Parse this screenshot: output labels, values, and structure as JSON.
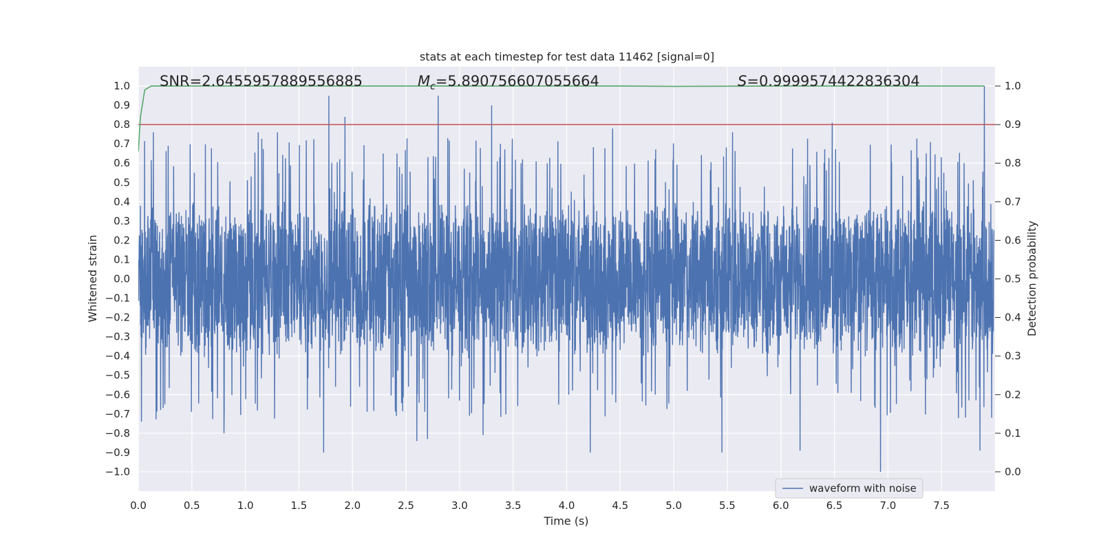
{
  "chart_data": {
    "type": "line",
    "title": "stats at each timestep for test data 11462 [signal=0]",
    "xlabel": "Time (s)",
    "ylabel_left": "Whitened strain",
    "ylabel_right": "Detection probability",
    "xlim": [
      0.0,
      8.0
    ],
    "ylim_left": [
      -1.1,
      1.1
    ],
    "ylim_right": [
      -0.05,
      1.05
    ],
    "x_ticks": [
      "0.0",
      "0.5",
      "1.0",
      "1.5",
      "2.0",
      "2.5",
      "3.0",
      "3.5",
      "4.0",
      "4.5",
      "5.0",
      "5.5",
      "6.0",
      "6.5",
      "7.0",
      "7.5"
    ],
    "x_tick_values": [
      0.0,
      0.5,
      1.0,
      1.5,
      2.0,
      2.5,
      3.0,
      3.5,
      4.0,
      4.5,
      5.0,
      5.5,
      6.0,
      6.5,
      7.0,
      7.5
    ],
    "y_ticks_left": [
      "1.0",
      "0.9",
      "0.8",
      "0.7",
      "0.6",
      "0.5",
      "0.4",
      "0.3",
      "0.2",
      "0.1",
      "0.0",
      "−0.1",
      "−0.2",
      "−0.3",
      "−0.4",
      "−0.5",
      "−0.6",
      "−0.7",
      "−0.8",
      "−0.9",
      "−1.0"
    ],
    "y_tick_values_left": [
      1.0,
      0.9,
      0.8,
      0.7,
      0.6,
      0.5,
      0.4,
      0.3,
      0.2,
      0.1,
      0.0,
      -0.1,
      -0.2,
      -0.3,
      -0.4,
      -0.5,
      -0.6,
      -0.7,
      -0.8,
      -0.9,
      -1.0
    ],
    "y_ticks_right": [
      "1.0",
      "0.9",
      "0.8",
      "0.7",
      "0.6",
      "0.5",
      "0.4",
      "0.3",
      "0.2",
      "0.1",
      "0.0"
    ],
    "y_tick_values_right": [
      1.0,
      0.9,
      0.8,
      0.7,
      0.6,
      0.5,
      0.4,
      0.3,
      0.2,
      0.1,
      0.0
    ],
    "annotations": {
      "snr": "SNR=2.6455957889556885",
      "mc_symbol": "M",
      "mc_subscript": "c",
      "mc_value": "=5.890756607055664",
      "s_symbol": "S",
      "s_value": "=0.9999574422836304"
    },
    "legend": {
      "label": "waveform with noise",
      "location": "lower-right"
    },
    "threshold_line": {
      "axis": "right",
      "value": 0.9,
      "color": "#c44e52"
    },
    "probability_series": {
      "name": "Detection probability",
      "color": "#55a868",
      "x": [
        0.0,
        0.02,
        0.06,
        0.12,
        0.5,
        1.5,
        3.0,
        4.5,
        5.0,
        6.0,
        7.0,
        7.9
      ],
      "y": [
        0.83,
        0.92,
        0.99,
        1.0,
        1.0,
        1.0,
        1.0,
        1.0,
        0.999,
        1.0,
        1.0,
        1.0
      ]
    },
    "waveform_series": {
      "name": "waveform with noise",
      "color": "#4c72b0",
      "x_range": [
        0.0,
        7.99
      ],
      "typical_envelope": [
        -0.4,
        0.4
      ],
      "max_value": 1.0,
      "min_value": -1.0,
      "positive_peaks": [
        {
          "x": 0.14,
          "y": 0.76
        },
        {
          "x": 1.12,
          "y": 0.76
        },
        {
          "x": 1.3,
          "y": 0.76
        },
        {
          "x": 1.78,
          "y": 0.95
        },
        {
          "x": 1.93,
          "y": 0.84
        },
        {
          "x": 2.8,
          "y": 0.95
        },
        {
          "x": 3.3,
          "y": 0.9
        },
        {
          "x": 4.43,
          "y": 0.78
        },
        {
          "x": 5.55,
          "y": 0.76
        },
        {
          "x": 6.48,
          "y": 0.81
        },
        {
          "x": 7.9,
          "y": 1.0
        },
        {
          "x": 7.86,
          "y": 0.8
        }
      ],
      "negative_peaks": [
        {
          "x": 0.03,
          "y": -0.74
        },
        {
          "x": 0.8,
          "y": -0.8
        },
        {
          "x": 1.73,
          "y": -0.9
        },
        {
          "x": 2.6,
          "y": -0.84
        },
        {
          "x": 2.7,
          "y": -0.83
        },
        {
          "x": 3.22,
          "y": -0.81
        },
        {
          "x": 4.22,
          "y": -0.9
        },
        {
          "x": 5.45,
          "y": -0.9
        },
        {
          "x": 6.18,
          "y": -0.89
        },
        {
          "x": 6.93,
          "y": -1.0
        },
        {
          "x": 7.86,
          "y": -0.89
        }
      ]
    }
  }
}
